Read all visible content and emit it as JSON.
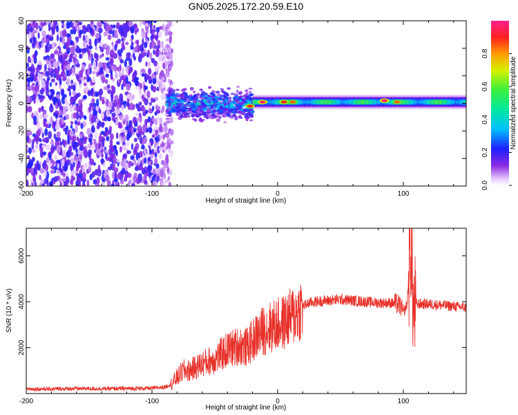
{
  "title": "GN05.2025.172.20.59.E10",
  "colors": {
    "snr_line": "#e8312a",
    "axis": "#000000",
    "background": "#ffffff"
  },
  "chart_data": [
    {
      "type": "heatmap",
      "title": "GN05.2025.172.20.59.E10",
      "xlabel": "Height of straight line (km)",
      "ylabel": "Frequency (Hz)",
      "xlim": [
        -200,
        150
      ],
      "ylim": [
        -60,
        60
      ],
      "x_ticks": [
        -200,
        -100,
        0,
        100
      ],
      "x_tick_labels": [
        "-200",
        "-100",
        "0",
        "100"
      ],
      "y_ticks": [
        -60,
        -40,
        -20,
        0,
        20,
        40,
        60
      ],
      "y_tick_labels": [
        "-60",
        "-40",
        "-20",
        "0",
        "20",
        "40",
        "60"
      ],
      "grid": false,
      "colorbar": {
        "label": "Normalized spectral amplitude",
        "range": [
          0,
          1
        ],
        "ticks": [
          0.0,
          0.2,
          0.4,
          0.6,
          0.8
        ],
        "tick_labels": [
          "0.0",
          "0.2",
          "0.4",
          "0.6",
          "0.8"
        ],
        "colormap": "rainbow (white-purple-blue-cyan-green-yellow-orange-red-magenta)"
      },
      "regions": [
        {
          "x_range": [
            -200,
            -88
          ],
          "freq_range": [
            -60,
            60
          ],
          "amplitude": "0.05-0.25",
          "description": "broadband noise"
        },
        {
          "x_range": [
            -88,
            -20
          ],
          "freq_range": [
            -12,
            10
          ],
          "amplitude": "0.2-0.5"
        },
        {
          "x_range": [
            -20,
            150
          ],
          "freq_center": 1,
          "freq_halfwidth": 2.5,
          "amplitude": "0.4-0.9"
        }
      ],
      "peaks": [
        {
          "x": -22,
          "freq": -2,
          "amplitude": 0.9
        },
        {
          "x": -12,
          "freq": 1,
          "amplitude": 0.95
        },
        {
          "x": 5,
          "freq": 1,
          "amplitude": 0.9
        },
        {
          "x": 12,
          "freq": 1,
          "amplitude": 0.85
        },
        {
          "x": 85,
          "freq": 2,
          "amplitude": 0.95
        },
        {
          "x": 95,
          "freq": 1,
          "amplitude": 0.85
        }
      ]
    },
    {
      "type": "line",
      "xlabel": "Height of straight line (km)",
      "ylabel": "SNR (10 * v/v)",
      "xlim": [
        -200,
        150
      ],
      "ylim": [
        0,
        7200
      ],
      "x_ticks": [
        -200,
        -100,
        0,
        100
      ],
      "x_tick_labels": [
        "-200",
        "-100",
        "0",
        "100"
      ],
      "y_ticks": [
        2000,
        4000,
        6000
      ],
      "y_tick_labels": [
        "2000",
        "4000",
        "6000"
      ],
      "grid": false,
      "series": [
        {
          "x": [
            -200,
            -180,
            -160,
            -140,
            -120,
            -100,
            -90,
            -85,
            -80,
            -75,
            -70,
            -60,
            -50,
            -40,
            -30,
            -25,
            -20,
            -15,
            -10,
            -5,
            0,
            5,
            10,
            15,
            20,
            25,
            30,
            40,
            50,
            60,
            70,
            80,
            90,
            95,
            98,
            100,
            103,
            106,
            108,
            110,
            120,
            130,
            140,
            150
          ],
          "y": [
            200,
            200,
            220,
            210,
            220,
            230,
            280,
            400,
            700,
            1000,
            1000,
            1300,
            1500,
            1900,
            2100,
            2000,
            2300,
            2600,
            2800,
            2900,
            3000,
            3100,
            3300,
            3500,
            3800,
            3950,
            4000,
            4050,
            4100,
            4050,
            4000,
            3950,
            3950,
            3900,
            3800,
            3500,
            3900,
            6500,
            3500,
            3900,
            3900,
            3850,
            3800,
            3750
          ]
        }
      ]
    }
  ]
}
